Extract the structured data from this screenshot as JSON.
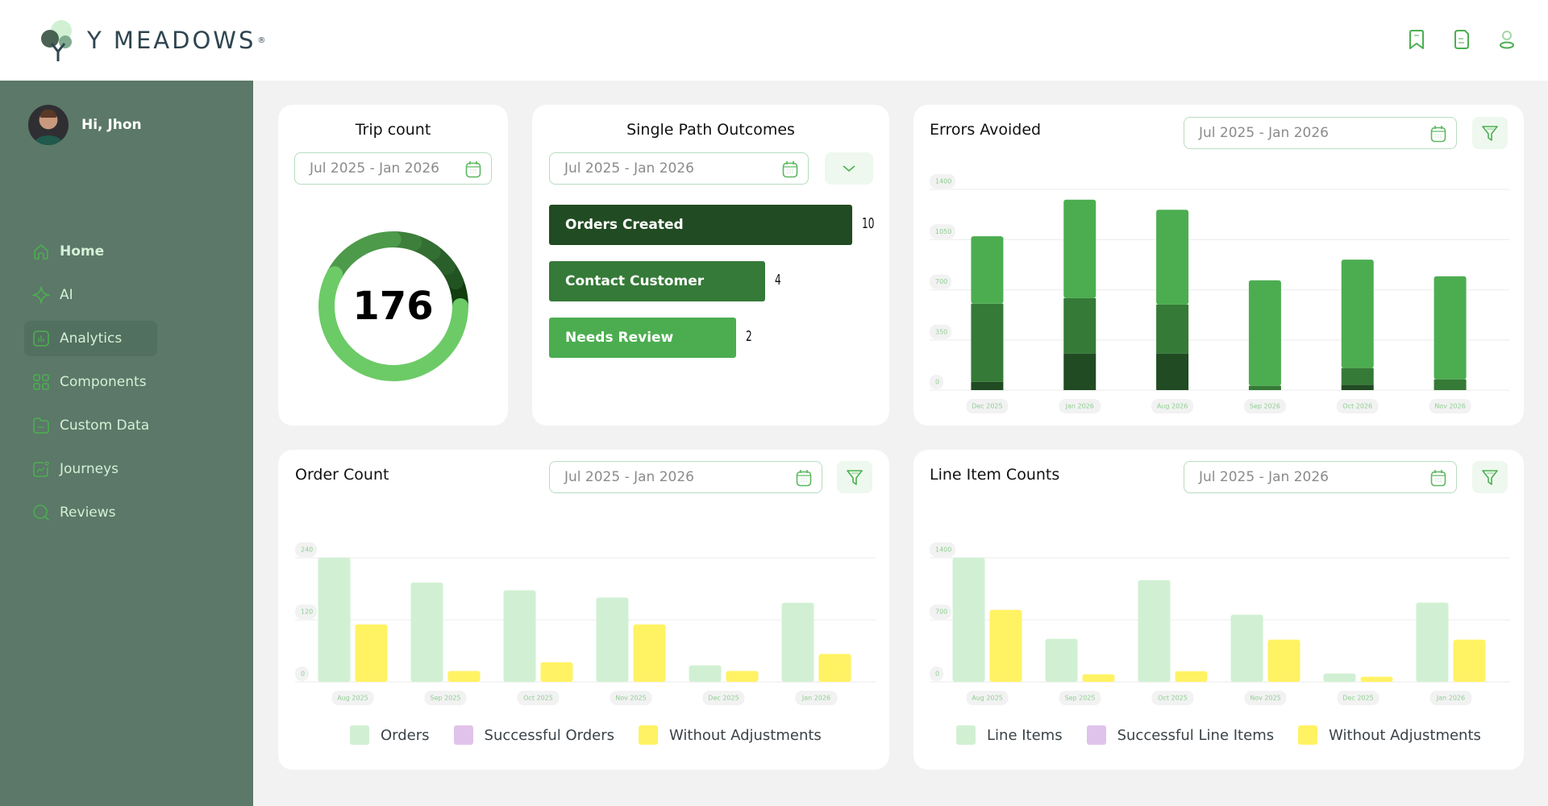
{
  "brand": {
    "name": "Y MEADOWS",
    "registered": "®"
  },
  "header_icons": [
    {
      "name": "bookmark-icon"
    },
    {
      "name": "document-icon"
    },
    {
      "name": "user-icon"
    }
  ],
  "user": {
    "greeting": "Hi, Jhon"
  },
  "sidebar": {
    "items": [
      {
        "label": "Home",
        "icon": "home-icon",
        "active": false,
        "bold": true
      },
      {
        "label": "AI",
        "icon": "sparkle-icon",
        "active": false,
        "bold": false
      },
      {
        "label": "Analytics",
        "icon": "analytics-icon",
        "active": true,
        "bold": false
      },
      {
        "label": "Components",
        "icon": "components-icon",
        "active": false,
        "bold": false
      },
      {
        "label": "Custom Data",
        "icon": "folder-icon",
        "active": false,
        "bold": false
      },
      {
        "label": "Journeys",
        "icon": "journeys-icon",
        "active": false,
        "bold": false
      },
      {
        "label": "Reviews",
        "icon": "search-icon",
        "active": false,
        "bold": false
      }
    ]
  },
  "colors": {
    "accent": "#4caf50",
    "sidebar_bg": "#5b7868",
    "light_green": "#d1f0d3",
    "yellow": "#fff263",
    "purple": "#e0c3ea",
    "dark_green": "#204b23",
    "mid_green": "#357a37",
    "bright_green": "#4cad50"
  },
  "date_range": "Jul 2025 - Jan 2026",
  "trip_count": {
    "title": "Trip count",
    "value": "176",
    "date_range": "Jul 2025 - Jan 2026"
  },
  "single_path": {
    "title": "Single Path Outcomes",
    "date_range": "Jul 2025 - Jan 2026",
    "bars": [
      {
        "label": "Orders Created",
        "value": 10,
        "display": "10",
        "color": "#214b22"
      },
      {
        "label": "Contact Customer",
        "value": 4,
        "display": "4",
        "color": "#357a38"
      },
      {
        "label": "Needs Review",
        "value": 2,
        "display": "2",
        "color": "#4cad50"
      }
    ]
  },
  "chart_data": [
    {
      "id": "trip_count_donut",
      "type": "pie",
      "title": "Trip count",
      "center_label": "176",
      "segments": [
        {
          "fraction": 0.58,
          "color": "#6ccb66"
        },
        {
          "fraction": 0.17,
          "color": "#4d9a4a"
        },
        {
          "fraction": 0.05,
          "color": "#3e7f3c"
        },
        {
          "fraction": 0.05,
          "color": "#336e33"
        },
        {
          "fraction": 0.05,
          "color": "#2b5f2a"
        },
        {
          "fraction": 0.04,
          "color": "#225322"
        },
        {
          "fraction": 0.06,
          "color": "#123e10"
        }
      ]
    },
    {
      "id": "single_path_outcomes",
      "type": "bar",
      "title": "Single Path Outcomes",
      "categories": [
        "Orders Created",
        "Contact Customer",
        "Needs Review"
      ],
      "values": [
        10,
        4,
        2
      ],
      "orientation": "horizontal"
    },
    {
      "id": "errors_avoided",
      "type": "bar",
      "stacked": true,
      "title": "Errors Avoided",
      "date_range": "Jul 2025 - Jan 2026",
      "categories": [
        "Dec 2025",
        "Jan 2026",
        "Aug 2026",
        "Sep 2026",
        "Oct 2026",
        "Nov 2026"
      ],
      "series": [
        {
          "name": "dark",
          "color": "#204b23",
          "values": [
            58,
            255,
            255,
            0,
            36,
            0
          ]
        },
        {
          "name": "mid",
          "color": "#357a37",
          "values": [
            545,
            387,
            342,
            30,
            118,
            75
          ]
        },
        {
          "name": "light",
          "color": "#4cad50",
          "values": [
            470,
            686,
            661,
            736,
            756,
            719
          ]
        }
      ],
      "yticks": [
        0,
        350,
        700,
        1050,
        1400
      ],
      "ylim": [
        0,
        1400
      ],
      "grid": true
    },
    {
      "id": "order_count",
      "type": "bar",
      "title": "Order Count",
      "date_range": "Jul 2025 - Jan 2026",
      "categories": [
        "Aug 2025",
        "Sep 2025",
        "Oct 2025",
        "Nov 2025",
        "Dec 2025",
        "Jan 2026"
      ],
      "series": [
        {
          "name": "Orders",
          "color": "#d1f0d3",
          "values": [
            240,
            192,
            177,
            163,
            32,
            153
          ]
        },
        {
          "name": "Successful Orders",
          "color": "#e0c3ea",
          "values": [
            0,
            0,
            0,
            0,
            0,
            0
          ]
        },
        {
          "name": "Without Adjustments",
          "color": "#fff263",
          "values": [
            111,
            21,
            38,
            111,
            21,
            54
          ]
        }
      ],
      "yticks": [
        0,
        120,
        240
      ],
      "ylim": [
        0,
        240
      ],
      "grid": true,
      "legend": "bottom"
    },
    {
      "id": "line_item_counts",
      "type": "bar",
      "title": "Line Item Counts",
      "date_range": "Jul 2025 - Jan 2026",
      "categories": [
        "Aug 2025",
        "Sep 2025",
        "Oct 2025",
        "Nov 2025",
        "Dec 2025",
        "Jan 2026"
      ],
      "series": [
        {
          "name": "Line Items",
          "color": "#d1f0d3",
          "values": [
            1400,
            485,
            1148,
            758,
            94,
            894
          ]
        },
        {
          "name": "Successful Line Items",
          "color": "#e0c3ea",
          "values": [
            0,
            0,
            0,
            0,
            0,
            0
          ]
        },
        {
          "name": "Without Adjustments",
          "color": "#fff263",
          "values": [
            812,
            85,
            121,
            476,
            58,
            476
          ]
        }
      ],
      "yticks": [
        0,
        700,
        1400
      ],
      "ylim": [
        0,
        1400
      ],
      "grid": true,
      "legend": "bottom"
    }
  ]
}
